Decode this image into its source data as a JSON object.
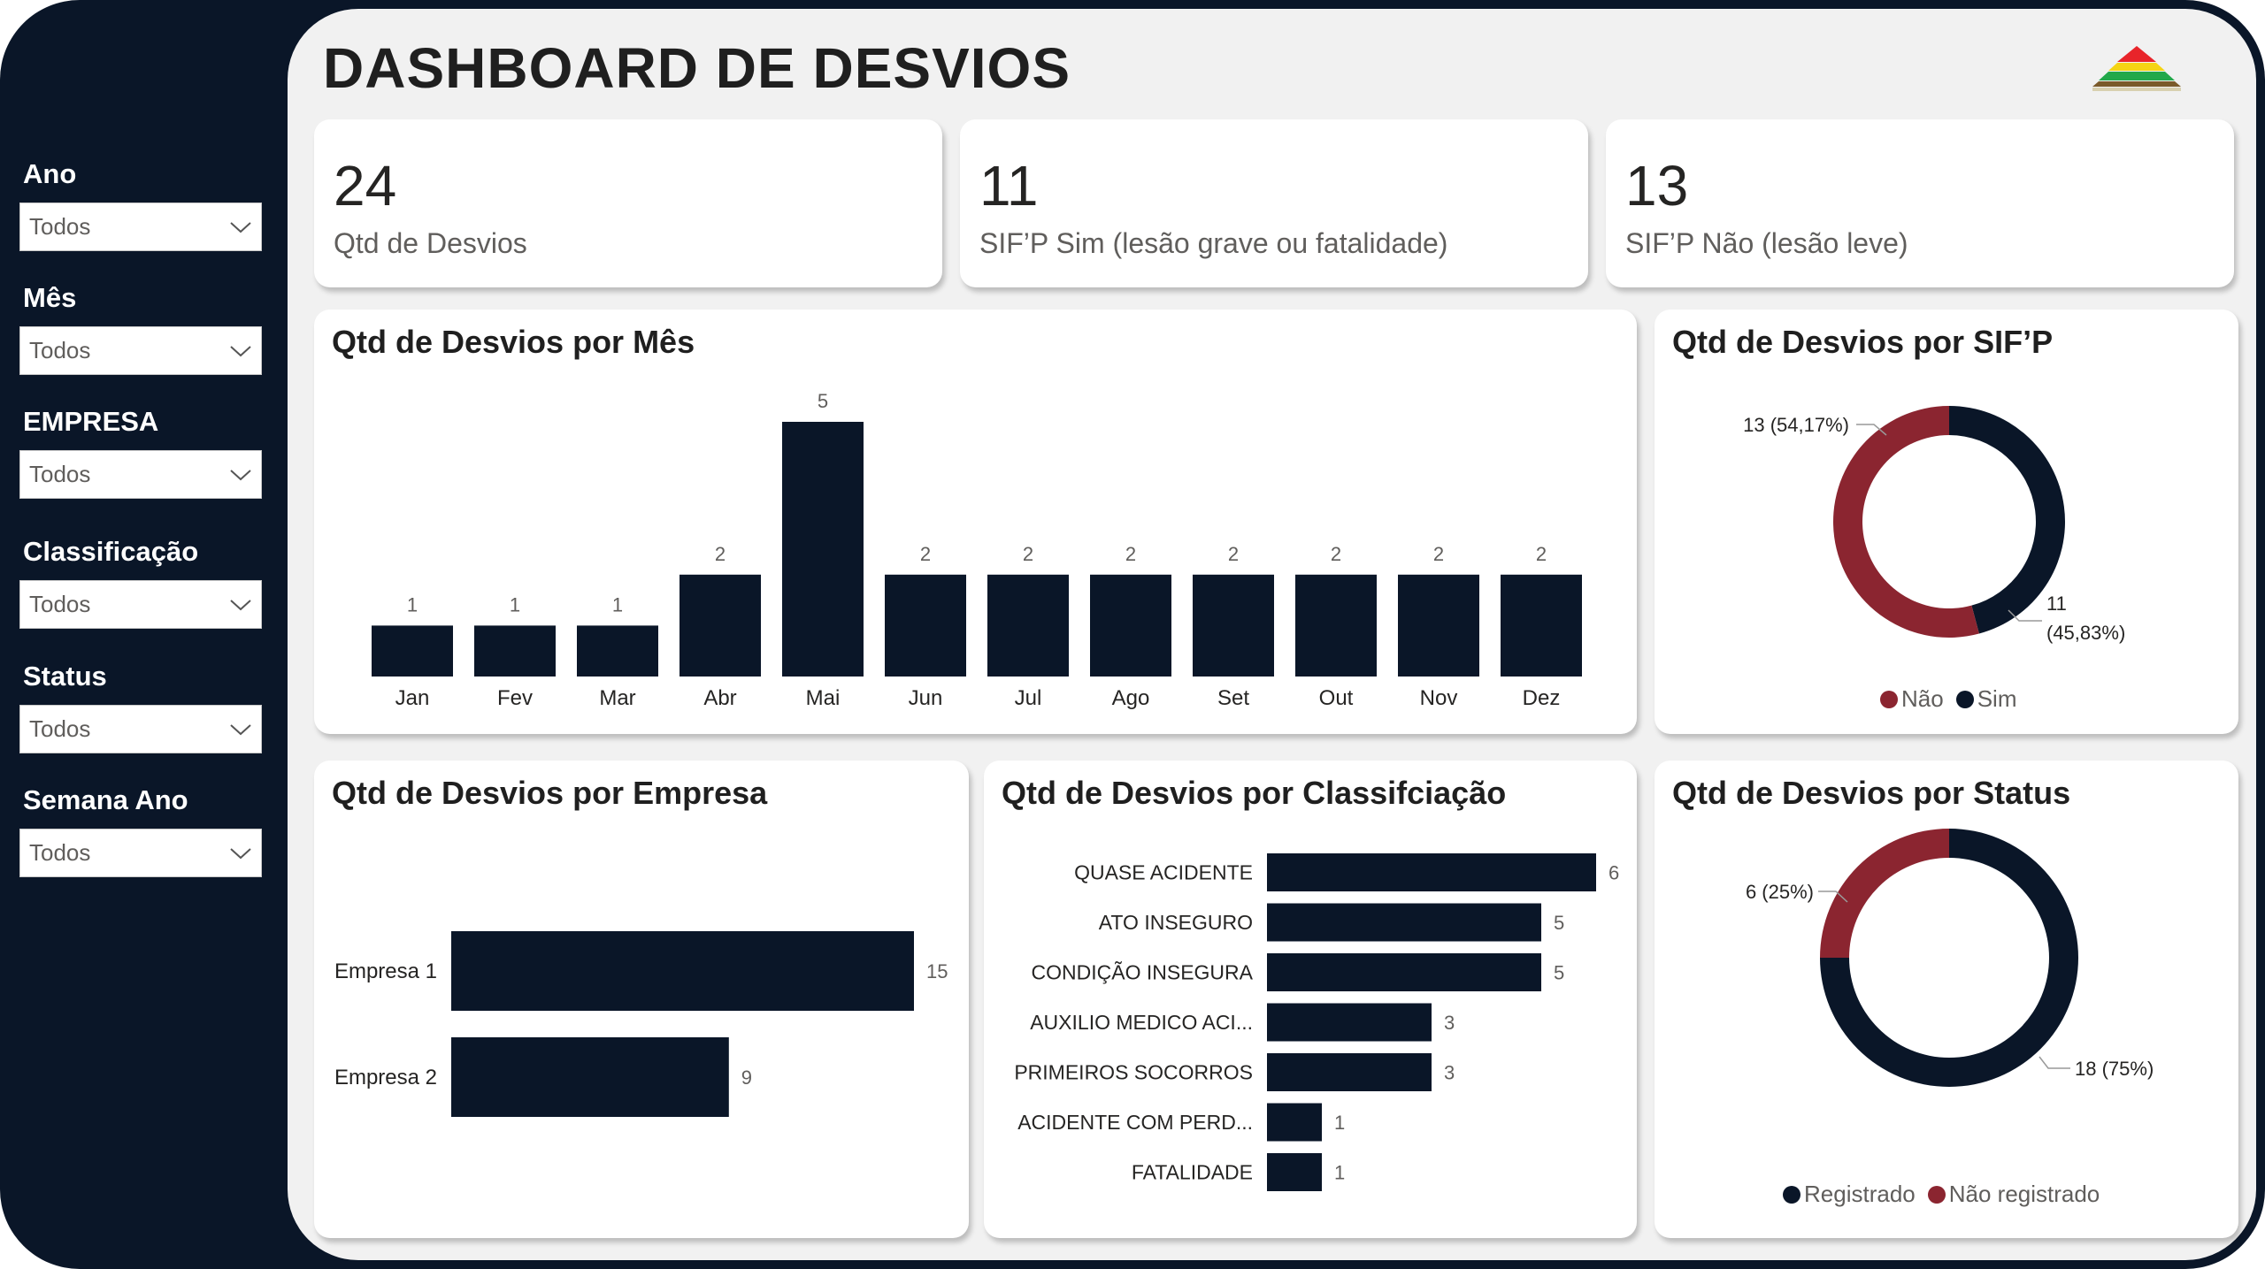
{
  "title": "DASHBOARD DE DESVIOS",
  "colors": {
    "navy": "#0a1628",
    "red": "#8b2530",
    "panel": "#f1f1f1"
  },
  "filters": [
    {
      "label": "Ano",
      "value": "Todos"
    },
    {
      "label": "Mês",
      "value": "Todos"
    },
    {
      "label": "EMPRESA",
      "value": "Todos"
    },
    {
      "label": "Classificação",
      "value": "Todos"
    },
    {
      "label": "Status",
      "value": "Todos"
    },
    {
      "label": "Semana Ano",
      "value": "Todos"
    }
  ],
  "kpis": [
    {
      "value": "24",
      "label": "Qtd de Desvios"
    },
    {
      "value": "11",
      "label": "SIF’P Sim (lesão grave ou fatalidade)"
    },
    {
      "value": "13",
      "label": "SIF’P Não (lesão leve)"
    }
  ],
  "charts": {
    "month": {
      "title": "Qtd de Desvios por Mês",
      "chart_data": {
        "type": "bar",
        "categories": [
          "Jan",
          "Fev",
          "Mar",
          "Abr",
          "Mai",
          "Jun",
          "Jul",
          "Ago",
          "Set",
          "Out",
          "Nov",
          "Dez"
        ],
        "values": [
          1,
          1,
          1,
          2,
          5,
          2,
          2,
          2,
          2,
          2,
          2,
          2
        ],
        "ylim": [
          0,
          5
        ]
      }
    },
    "sifp": {
      "title": "Qtd de Desvios por SIF’P",
      "chart_data": {
        "type": "pie",
        "labels": [
          "Não",
          "Sim"
        ],
        "values": [
          13,
          11
        ],
        "data_labels": [
          "13 (54,17%)",
          "11 (45,83%)"
        ],
        "colors": [
          "#8b2530",
          "#0a1628"
        ],
        "legend": "bottom"
      }
    },
    "empresa": {
      "title": "Qtd de Desvios por Empresa",
      "chart_data": {
        "type": "bar",
        "orientation": "horizontal",
        "categories": [
          "Empresa 1",
          "Empresa 2"
        ],
        "values": [
          15,
          9
        ]
      }
    },
    "classificacao": {
      "title": "Qtd de Desvios por Classifciação",
      "chart_data": {
        "type": "bar",
        "orientation": "horizontal",
        "categories": [
          "QUASE ACIDENTE",
          "ATO INSEGURO",
          "CONDIÇÃO INSEGURA",
          "AUXILIO MEDICO ACI...",
          "PRIMEIROS SOCORROS",
          "ACIDENTE COM PERD...",
          "FATALIDADE"
        ],
        "values": [
          6,
          5,
          5,
          3,
          3,
          1,
          1
        ]
      }
    },
    "status": {
      "title": "Qtd de Desvios por Status",
      "chart_data": {
        "type": "pie",
        "labels": [
          "Registrado",
          "Não registrado"
        ],
        "values": [
          18,
          6
        ],
        "data_labels": [
          "18 (75%)",
          "6 (25%)"
        ],
        "colors": [
          "#0a1628",
          "#8b2530"
        ],
        "legend": "bottom"
      }
    }
  }
}
